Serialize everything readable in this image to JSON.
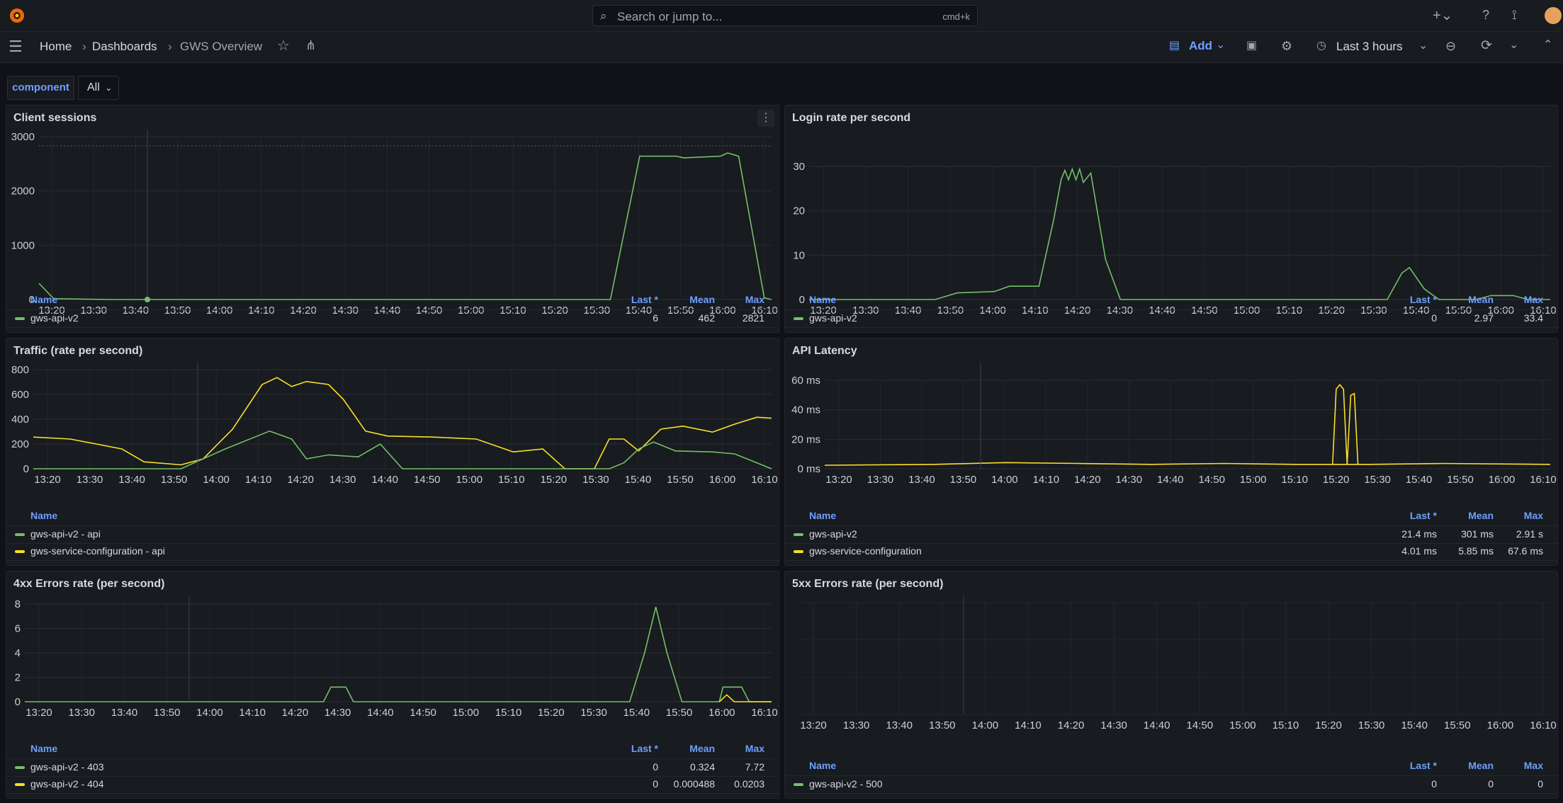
{
  "topbar": {
    "search_placeholder": "Search or jump to...",
    "search_shortcut": "cmd+k"
  },
  "breadcrumb": [
    "Home",
    "Dashboards",
    "GWS Overview"
  ],
  "toolbar": {
    "add_label": "Add",
    "time_range": "Last 3 hours"
  },
  "variables": {
    "label": "component",
    "value": "All"
  },
  "x_ticks": [
    "13:20",
    "13:30",
    "13:40",
    "13:50",
    "14:00",
    "14:10",
    "14:20",
    "14:30",
    "14:40",
    "14:50",
    "15:00",
    "15:10",
    "15:20",
    "15:30",
    "15:40",
    "15:50",
    "16:00",
    "16:10"
  ],
  "legend_headers": {
    "name": "Name",
    "last": "Last *",
    "mean": "Mean",
    "max": "Max"
  },
  "colors": {
    "green": "#73bf69",
    "yellow": "#fade2a",
    "accent": "#6e9fff"
  },
  "panels": {
    "client_sessions": {
      "title": "Client sessions",
      "y_ticks": [
        "0",
        "1000",
        "2000",
        "3000"
      ],
      "legend": [
        {
          "name": "gws-api-v2",
          "last": "6",
          "mean": "462",
          "max": "2821",
          "color": "green"
        }
      ]
    },
    "login_rate": {
      "title": "Login rate per second",
      "y_ticks": [
        "0",
        "10",
        "20",
        "30"
      ],
      "legend": [
        {
          "name": "gws-api-v2",
          "last": "0",
          "mean": "2.97",
          "max": "33.4",
          "color": "green"
        }
      ]
    },
    "traffic": {
      "title": "Traffic (rate per second)",
      "y_ticks": [
        "0",
        "200",
        "400",
        "600",
        "800"
      ],
      "legend": [
        {
          "name": "gws-api-v2 - api",
          "color": "green"
        },
        {
          "name": "gws-service-configuration - api",
          "color": "yellow"
        }
      ]
    },
    "api_latency": {
      "title": "API Latency",
      "y_ticks": [
        "0 ms",
        "20 ms",
        "40 ms",
        "60 ms"
      ],
      "legend": [
        {
          "name": "gws-api-v2",
          "last": "21.4 ms",
          "mean": "301 ms",
          "max": "2.91 s",
          "color": "green"
        },
        {
          "name": "gws-service-configuration",
          "last": "4.01 ms",
          "mean": "5.85 ms",
          "max": "67.6 ms",
          "color": "yellow"
        }
      ]
    },
    "errors_4xx": {
      "title": "4xx Errors rate (per second)",
      "y_ticks": [
        "0",
        "2",
        "4",
        "6",
        "8"
      ],
      "legend": [
        {
          "name": "gws-api-v2 - 403",
          "last": "0",
          "mean": "0.324",
          "max": "7.72",
          "color": "green"
        },
        {
          "name": "gws-api-v2 - 404",
          "last": "0",
          "mean": "0.000488",
          "max": "0.0203",
          "color": "yellow"
        }
      ]
    },
    "errors_5xx": {
      "title": "5xx Errors rate (per second)",
      "y_ticks": [],
      "legend": [
        {
          "name": "gws-api-v2 - 500",
          "last": "0",
          "mean": "0",
          "max": "0",
          "color": "green"
        }
      ]
    }
  }
}
